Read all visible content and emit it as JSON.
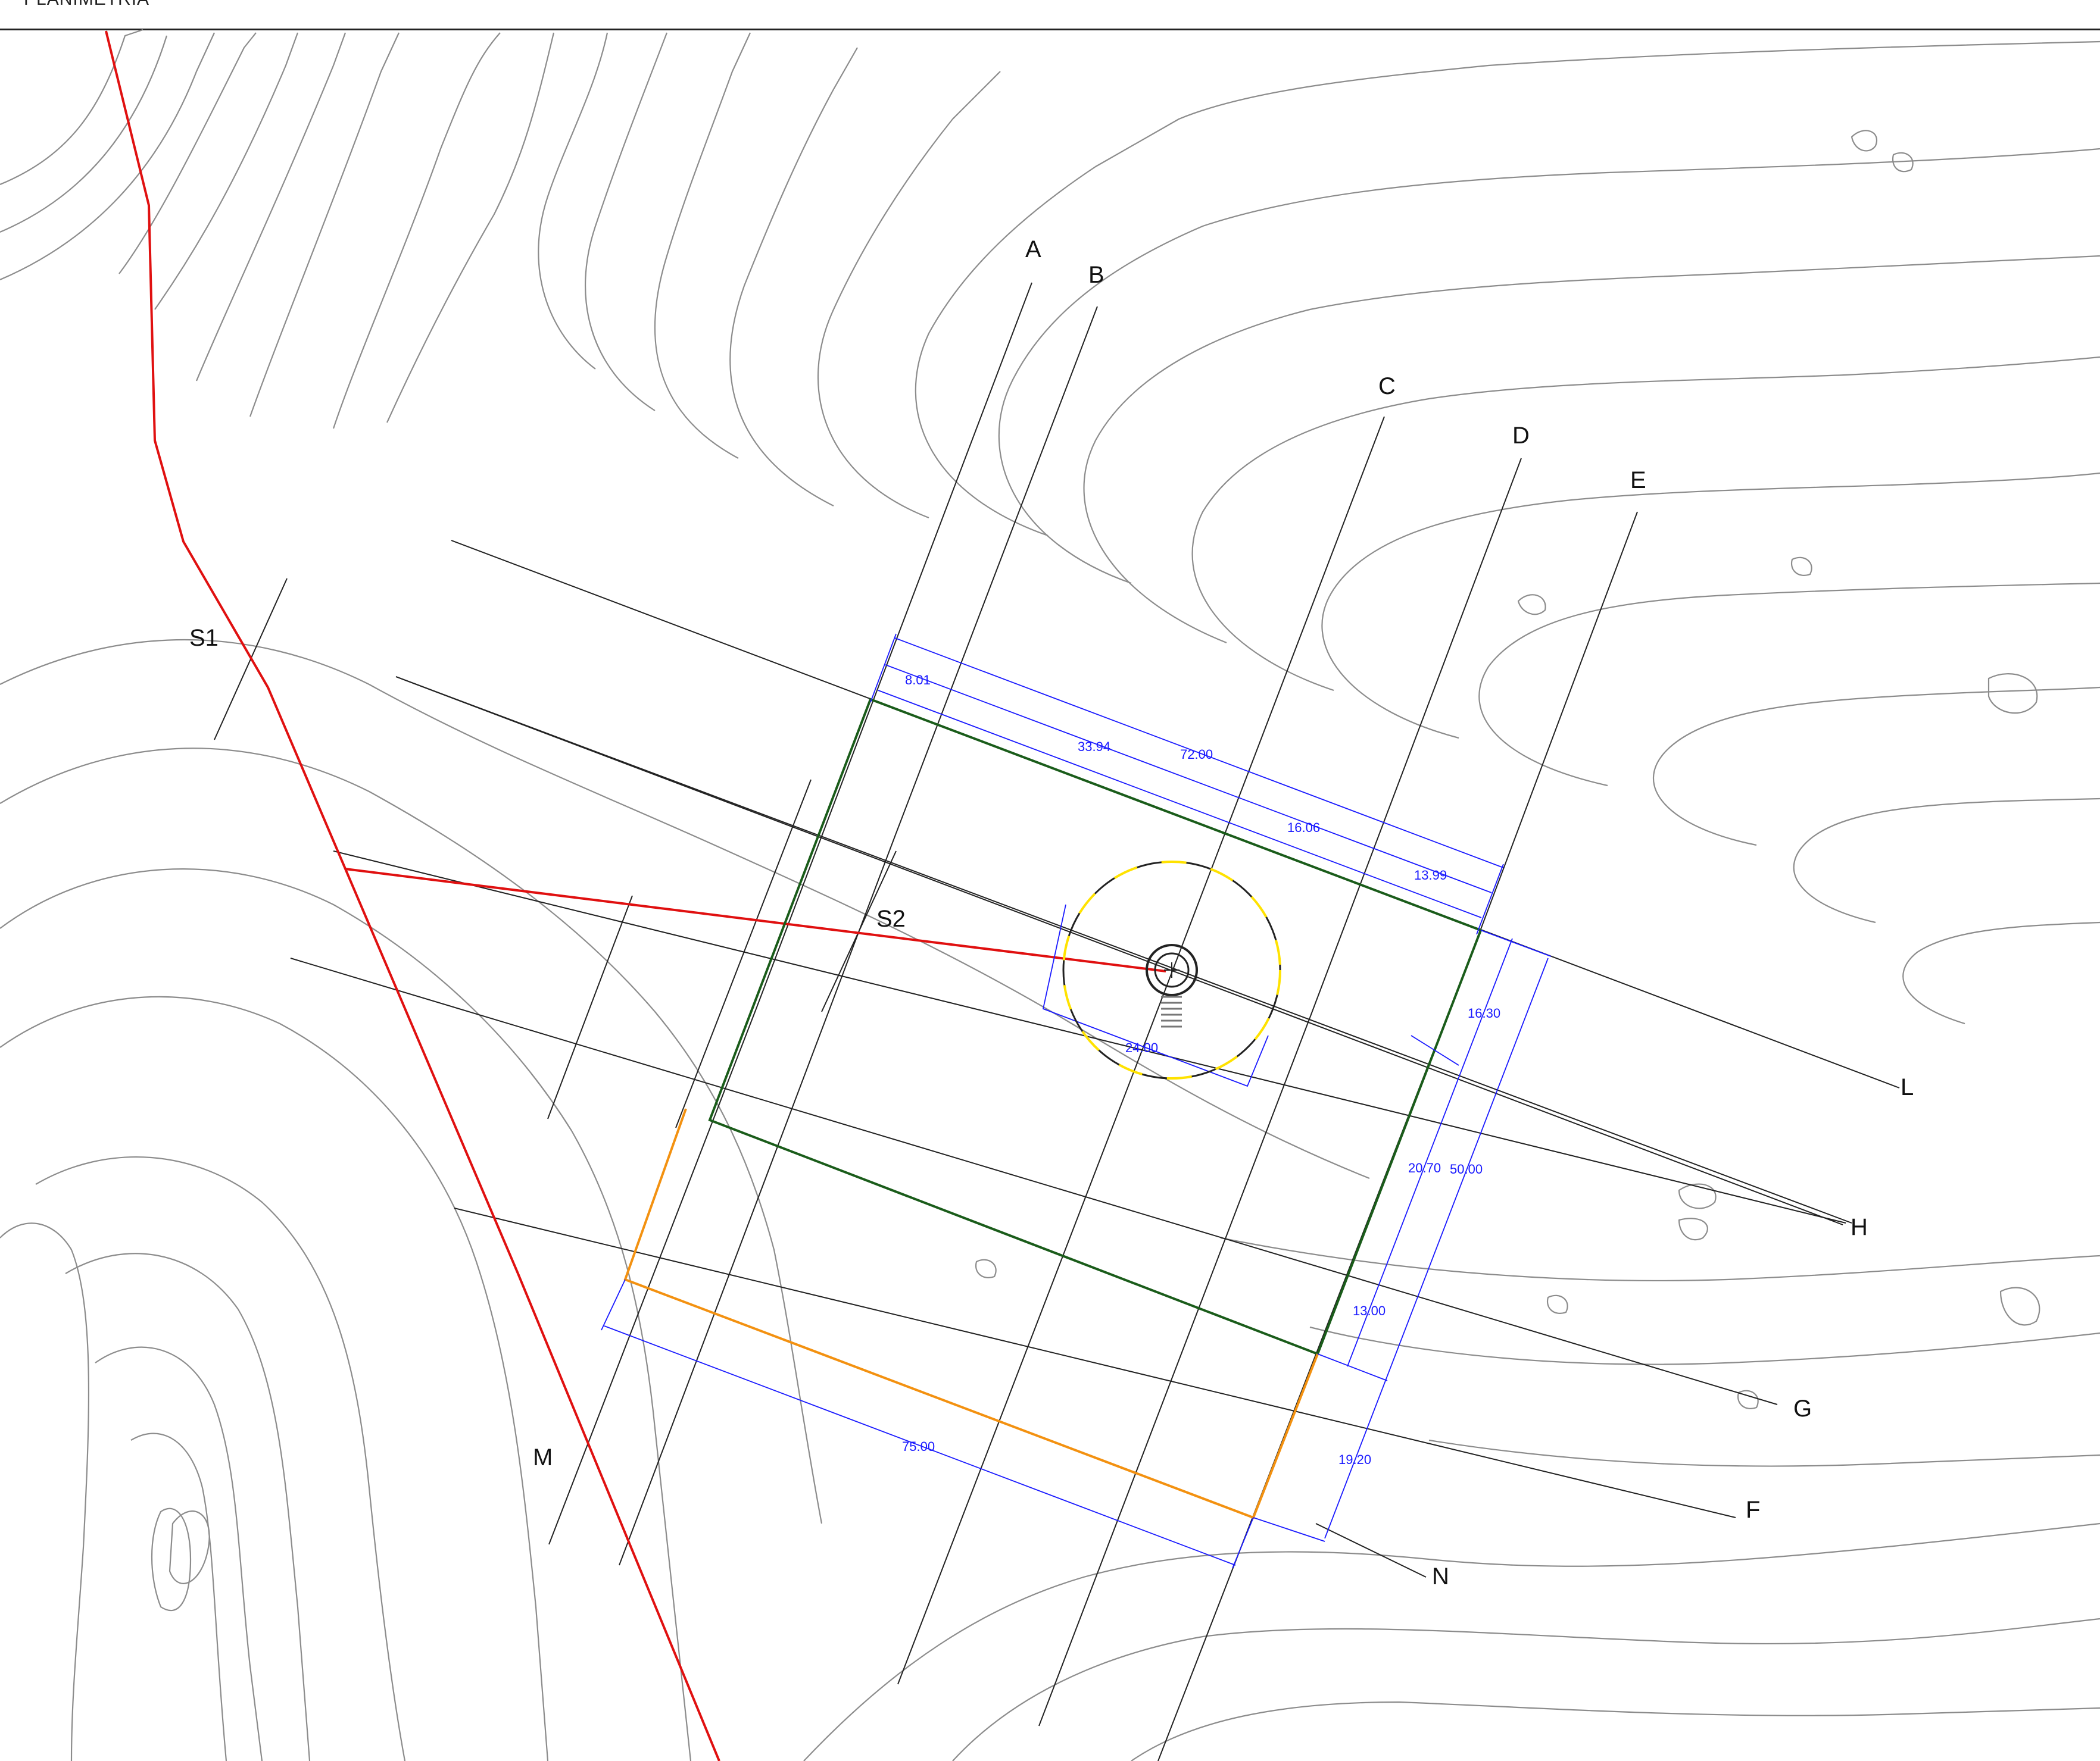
{
  "header": {
    "title": "PLANIMETRIA"
  },
  "colors": {
    "contour": "#808080",
    "grid": "#222222",
    "boundary_red": "#e01010",
    "plot_green": "#1a5c1a",
    "plot_orange": "#f39110",
    "dimension_blue": "#1a1aff",
    "circle_yellow": "#ffe200"
  },
  "section_labels": {
    "s1": "S1",
    "s2": "S2"
  },
  "grid_labels": {
    "a": "A",
    "b": "B",
    "c": "C",
    "d": "D",
    "e": "E",
    "f": "F",
    "g": "G",
    "h": "H",
    "l": "L",
    "m": "M",
    "n": "N"
  },
  "dimensions": {
    "d_8_01": "8.01",
    "d_33_94": "33.94",
    "d_72_00": "72.00",
    "d_16_06": "16.06",
    "d_13_99": "13.99",
    "d_16_30": "16.30",
    "d_20_70": "20.70",
    "d_50_00": "50.00",
    "d_24_00": "24.00",
    "d_13_00": "13.00",
    "d_19_20": "19.20",
    "d_75_00": "75.00"
  },
  "icons": {
    "turbine": "wind-turbine-symbol-icon"
  }
}
